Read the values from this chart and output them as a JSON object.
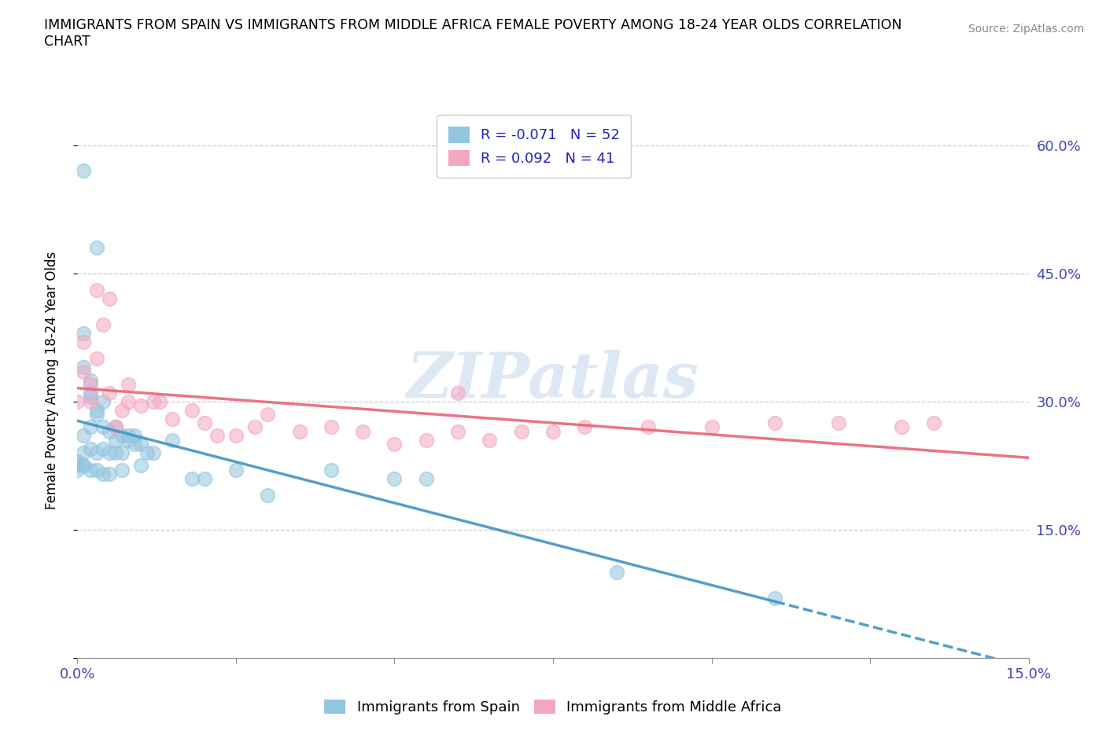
{
  "title": "IMMIGRANTS FROM SPAIN VS IMMIGRANTS FROM MIDDLE AFRICA FEMALE POVERTY AMONG 18-24 YEAR OLDS CORRELATION\nCHART",
  "source": "Source: ZipAtlas.com",
  "ylabel": "Female Poverty Among 18-24 Year Olds",
  "xlim": [
    0.0,
    0.15
  ],
  "ylim": [
    0.0,
    0.65
  ],
  "xticks": [
    0.0,
    0.025,
    0.05,
    0.075,
    0.1,
    0.125,
    0.15
  ],
  "yticks": [
    0.0,
    0.15,
    0.3,
    0.45,
    0.6
  ],
  "ytick_labels": [
    "",
    "15.0%",
    "30.0%",
    "45.0%",
    "60.0%"
  ],
  "xtick_labels": [
    "0.0%",
    "",
    "",
    "",
    "",
    "",
    "15.0%"
  ],
  "R_spain": -0.071,
  "N_spain": 52,
  "R_africa": 0.092,
  "N_africa": 41,
  "color_spain": "#92c5de",
  "color_africa": "#f4a6c0",
  "watermark": "ZIPatlas",
  "spain_x": [
    0.001,
    0.003,
    0.001,
    0.001,
    0.002,
    0.002,
    0.002,
    0.003,
    0.003,
    0.004,
    0.001,
    0.002,
    0.004,
    0.005,
    0.006,
    0.006,
    0.007,
    0.008,
    0.008,
    0.009,
    0.001,
    0.002,
    0.003,
    0.004,
    0.005,
    0.006,
    0.007,
    0.009,
    0.01,
    0.011,
    0.0,
    0.0,
    0.0,
    0.001,
    0.001,
    0.002,
    0.003,
    0.004,
    0.005,
    0.007,
    0.01,
    0.012,
    0.015,
    0.018,
    0.02,
    0.025,
    0.03,
    0.04,
    0.05,
    0.055,
    0.085,
    0.11
  ],
  "spain_y": [
    0.57,
    0.48,
    0.38,
    0.34,
    0.325,
    0.31,
    0.305,
    0.285,
    0.29,
    0.3,
    0.26,
    0.27,
    0.27,
    0.265,
    0.27,
    0.255,
    0.26,
    0.26,
    0.255,
    0.26,
    0.24,
    0.245,
    0.24,
    0.245,
    0.24,
    0.24,
    0.24,
    0.25,
    0.25,
    0.24,
    0.23,
    0.225,
    0.22,
    0.225,
    0.225,
    0.22,
    0.22,
    0.215,
    0.215,
    0.22,
    0.225,
    0.24,
    0.255,
    0.21,
    0.21,
    0.22,
    0.19,
    0.22,
    0.21,
    0.21,
    0.1,
    0.07
  ],
  "africa_x": [
    0.0,
    0.001,
    0.001,
    0.002,
    0.002,
    0.003,
    0.004,
    0.005,
    0.006,
    0.007,
    0.008,
    0.01,
    0.012,
    0.015,
    0.018,
    0.02,
    0.022,
    0.025,
    0.028,
    0.03,
    0.035,
    0.04,
    0.045,
    0.05,
    0.055,
    0.06,
    0.065,
    0.07,
    0.075,
    0.08,
    0.09,
    0.1,
    0.11,
    0.12,
    0.13,
    0.135,
    0.003,
    0.005,
    0.008,
    0.013,
    0.06
  ],
  "africa_y": [
    0.3,
    0.37,
    0.335,
    0.32,
    0.3,
    0.35,
    0.39,
    0.31,
    0.27,
    0.29,
    0.3,
    0.295,
    0.3,
    0.28,
    0.29,
    0.275,
    0.26,
    0.26,
    0.27,
    0.285,
    0.265,
    0.27,
    0.265,
    0.25,
    0.255,
    0.265,
    0.255,
    0.265,
    0.265,
    0.27,
    0.27,
    0.27,
    0.275,
    0.275,
    0.27,
    0.275,
    0.43,
    0.42,
    0.32,
    0.3,
    0.31
  ]
}
